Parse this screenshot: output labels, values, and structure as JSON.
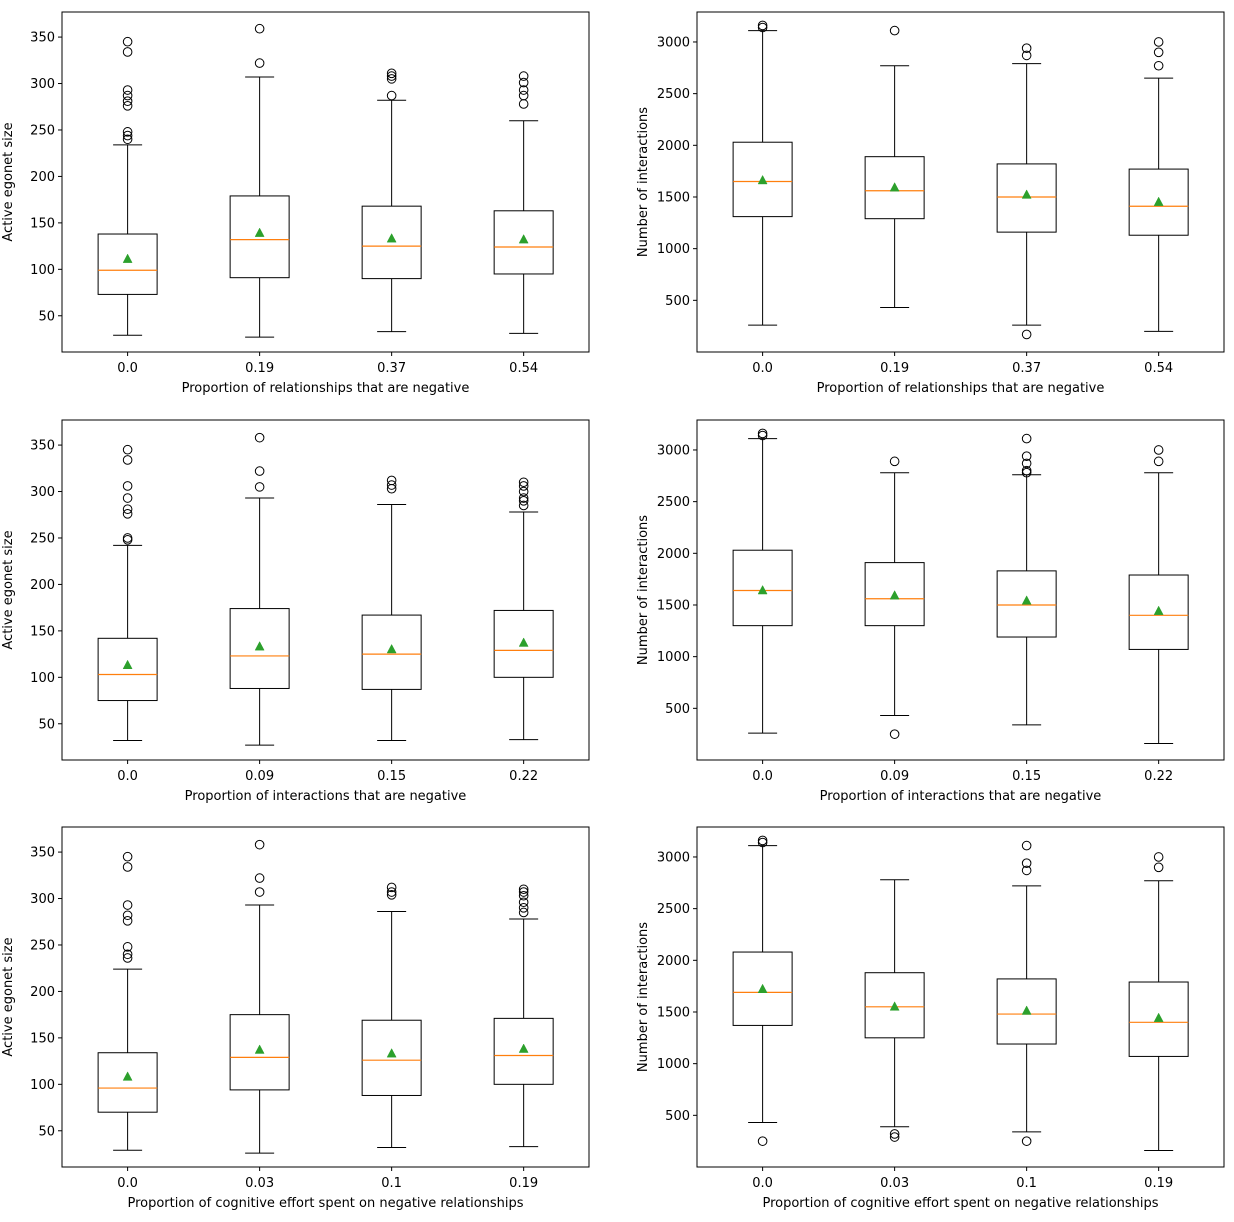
{
  "figure": {
    "rows": 3,
    "cols": 2
  },
  "chart_data": [
    {
      "type": "boxplot",
      "xlabel": "Proportion of relationships that are negative",
      "ylabel": "Active egonet size",
      "ylim": [
        11,
        377
      ],
      "yticks": [
        50,
        100,
        150,
        200,
        250,
        300,
        350
      ],
      "categories": [
        "0.0",
        "0.19",
        "0.37",
        "0.54"
      ],
      "boxes": [
        {
          "whislo": 29,
          "q1": 73,
          "med": 99,
          "q3": 138,
          "whishi": 234,
          "mean": 111,
          "fliers": [
            240,
            244,
            248,
            276,
            281,
            287,
            293,
            334,
            345
          ]
        },
        {
          "whislo": 27,
          "q1": 91,
          "med": 132,
          "q3": 179,
          "whishi": 307,
          "mean": 139,
          "fliers": [
            322,
            359
          ]
        },
        {
          "whislo": 33,
          "q1": 90,
          "med": 125,
          "q3": 168,
          "whishi": 282,
          "mean": 133,
          "fliers": [
            287,
            305,
            308,
            311
          ]
        },
        {
          "whislo": 31,
          "q1": 95,
          "med": 124,
          "q3": 163,
          "whishi": 260,
          "mean": 132,
          "fliers": [
            278,
            287,
            293,
            301,
            308
          ]
        }
      ]
    },
    {
      "type": "boxplot",
      "xlabel": "Proportion of relationships that are negative",
      "ylabel": "Number of interactions",
      "ylim": [
        0,
        3290
      ],
      "yticks": [
        500,
        1000,
        1500,
        2000,
        2500,
        3000
      ],
      "categories": [
        "0.0",
        "0.19",
        "0.37",
        "0.54"
      ],
      "boxes": [
        {
          "whislo": 260,
          "q1": 1310,
          "med": 1650,
          "q3": 2030,
          "whishi": 3110,
          "mean": 1660,
          "fliers": [
            3140,
            3160
          ]
        },
        {
          "whislo": 430,
          "q1": 1290,
          "med": 1560,
          "q3": 1890,
          "whishi": 2770,
          "mean": 1590,
          "fliers": [
            3110
          ]
        },
        {
          "whislo": 260,
          "q1": 1160,
          "med": 1500,
          "q3": 1820,
          "whishi": 2790,
          "mean": 1520,
          "fliers": [
            170,
            2870,
            2940
          ]
        },
        {
          "whislo": 200,
          "q1": 1130,
          "med": 1410,
          "q3": 1770,
          "whishi": 2650,
          "mean": 1450,
          "fliers": [
            2770,
            2900,
            3000
          ]
        }
      ]
    },
    {
      "type": "boxplot",
      "xlabel": "Proportion of interactions that are negative",
      "ylabel": "Active egonet size",
      "ylim": [
        11,
        377
      ],
      "yticks": [
        50,
        100,
        150,
        200,
        250,
        300,
        350
      ],
      "categories": [
        "0.0",
        "0.09",
        "0.15",
        "0.22"
      ],
      "boxes": [
        {
          "whislo": 32,
          "q1": 75,
          "med": 103,
          "q3": 142,
          "whishi": 242,
          "mean": 113,
          "fliers": [
            248,
            250,
            276,
            281,
            293,
            306,
            334,
            345
          ]
        },
        {
          "whislo": 27,
          "q1": 88,
          "med": 123,
          "q3": 174,
          "whishi": 293,
          "mean": 133,
          "fliers": [
            305,
            322,
            358
          ]
        },
        {
          "whislo": 32,
          "q1": 87,
          "med": 125,
          "q3": 167,
          "whishi": 286,
          "mean": 130,
          "fliers": [
            303,
            307,
            312
          ]
        },
        {
          "whislo": 33,
          "q1": 100,
          "med": 129,
          "q3": 172,
          "whishi": 278,
          "mean": 137,
          "fliers": [
            285,
            290,
            293,
            300,
            306,
            310
          ]
        }
      ]
    },
    {
      "type": "boxplot",
      "xlabel": "Proportion of interactions that are negative",
      "ylabel": "Number of interactions",
      "ylim": [
        0,
        3290
      ],
      "yticks": [
        500,
        1000,
        1500,
        2000,
        2500,
        3000
      ],
      "categories": [
        "0.0",
        "0.09",
        "0.15",
        "0.22"
      ],
      "boxes": [
        {
          "whislo": 260,
          "q1": 1300,
          "med": 1640,
          "q3": 2030,
          "whishi": 3110,
          "mean": 1640,
          "fliers": [
            3140,
            3160
          ]
        },
        {
          "whislo": 430,
          "q1": 1300,
          "med": 1560,
          "q3": 1910,
          "whishi": 2780,
          "mean": 1590,
          "fliers": [
            250,
            2890
          ]
        },
        {
          "whislo": 340,
          "q1": 1190,
          "med": 1500,
          "q3": 1830,
          "whishi": 2760,
          "mean": 1540,
          "fliers": [
            2780,
            2800,
            2870,
            2940,
            3110
          ]
        },
        {
          "whislo": 160,
          "q1": 1070,
          "med": 1400,
          "q3": 1790,
          "whishi": 2780,
          "mean": 1440,
          "fliers": [
            2890,
            3000
          ]
        }
      ]
    },
    {
      "type": "boxplot",
      "xlabel": "Proportion of cognitive effort spent on negative relationships",
      "ylabel": "Active egonet size",
      "ylim": [
        11,
        377
      ],
      "yticks": [
        50,
        100,
        150,
        200,
        250,
        300,
        350
      ],
      "categories": [
        "0.0",
        "0.03",
        "0.1",
        "0.19"
      ],
      "boxes": [
        {
          "whislo": 29,
          "q1": 70,
          "med": 96,
          "q3": 134,
          "whishi": 224,
          "mean": 108,
          "fliers": [
            236,
            240,
            248,
            276,
            282,
            293,
            334,
            345
          ]
        },
        {
          "whislo": 26,
          "q1": 94,
          "med": 129,
          "q3": 175,
          "whishi": 293,
          "mean": 137,
          "fliers": [
            307,
            322,
            358
          ]
        },
        {
          "whislo": 32,
          "q1": 88,
          "med": 126,
          "q3": 169,
          "whishi": 286,
          "mean": 133,
          "fliers": [
            304,
            307,
            312
          ]
        },
        {
          "whislo": 33,
          "q1": 100,
          "med": 131,
          "q3": 171,
          "whishi": 278,
          "mean": 138,
          "fliers": [
            285,
            290,
            296,
            303,
            307,
            310
          ]
        }
      ]
    },
    {
      "type": "boxplot",
      "xlabel": "Proportion of cognitive effort spent on negative relationships",
      "ylabel": "Number of interactions",
      "ylim": [
        0,
        3290
      ],
      "yticks": [
        500,
        1000,
        1500,
        2000,
        2500,
        3000
      ],
      "categories": [
        "0.0",
        "0.03",
        "0.1",
        "0.19"
      ],
      "boxes": [
        {
          "whislo": 430,
          "q1": 1370,
          "med": 1690,
          "q3": 2080,
          "whishi": 3110,
          "mean": 1720,
          "fliers": [
            250,
            3140,
            3160
          ]
        },
        {
          "whislo": 390,
          "q1": 1250,
          "med": 1550,
          "q3": 1880,
          "whishi": 2780,
          "mean": 1550,
          "fliers": [
            290,
            320
          ]
        },
        {
          "whislo": 340,
          "q1": 1190,
          "med": 1480,
          "q3": 1820,
          "whishi": 2720,
          "mean": 1510,
          "fliers": [
            250,
            2870,
            2940,
            3110
          ]
        },
        {
          "whislo": 160,
          "q1": 1070,
          "med": 1400,
          "q3": 1790,
          "whishi": 2770,
          "mean": 1440,
          "fliers": [
            2900,
            3000
          ]
        }
      ]
    }
  ]
}
